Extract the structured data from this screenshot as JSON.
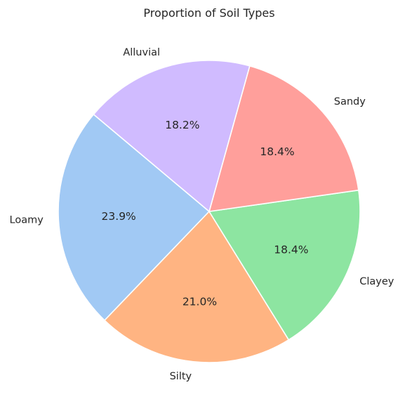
{
  "chart_data": {
    "type": "pie",
    "title": "Proportion of Soil Types",
    "categories": [
      "Loamy",
      "Silty",
      "Clayey",
      "Sandy",
      "Alluvial"
    ],
    "values": [
      23.9,
      21.0,
      18.4,
      18.4,
      18.2
    ],
    "percent_labels": [
      "23.9%",
      "21.0%",
      "18.4%",
      "18.4%",
      "18.2%"
    ],
    "colors": [
      "#a1c9f4",
      "#ffb482",
      "#8de5a1",
      "#ff9f9b",
      "#d0bbff"
    ],
    "start_angle_deg": 140,
    "direction": "counterclockwise",
    "legend": "none",
    "grid": false
  }
}
